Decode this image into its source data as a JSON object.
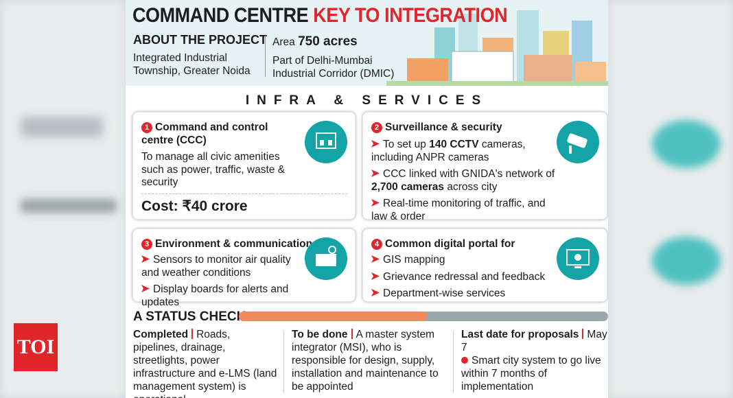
{
  "logo": "TOI",
  "header": {
    "title_black": "COMMAND CENTRE",
    "title_red": "KEY TO INTEGRATION",
    "about_label": "ABOUT THE PROJECT",
    "about_text": "Integrated Industrial Township, Greater Noida",
    "area_label": "Area",
    "area_value": "750 acres",
    "corridor": "Part of Delhi-Mumbai Industrial Corridor (DMIC)"
  },
  "section_title": "INFRA & SERVICES",
  "cards": [
    {
      "number": "1",
      "title": "Command and control centre (CCC)",
      "body": "To manage all civic amenities such as power, traffic, waste & security",
      "cost": "Cost: ₹40 crore"
    },
    {
      "number": "2",
      "title": "Surveillance & security",
      "items": [
        [
          "To set up ",
          "140 CCTV",
          " cameras, including ANPR cameras"
        ],
        [
          "CCC linked with GNIDA's network of ",
          "2,700 cameras",
          " across city"
        ],
        [
          "Real-time monitoring of traffic, and law & order"
        ]
      ]
    },
    {
      "number": "3",
      "title": "Environment & communication",
      "items": [
        [
          "Sensors to monitor air quality and weather conditions"
        ],
        [
          "Display boards for alerts and updates"
        ]
      ]
    },
    {
      "number": "4",
      "title": "Common digital portal for",
      "items": [
        [
          "GIS mapping"
        ],
        [
          "Grievance redressal and feedback"
        ],
        [
          "Department-wise services"
        ]
      ]
    }
  ],
  "status": {
    "title": "A STATUS CHECK",
    "progress_percent": 51,
    "columns": [
      {
        "label": "Completed",
        "text": "Roads, pipelines, drainage, streetlights, power infrastructure and e-LMS (land management system) is operational"
      },
      {
        "label": "To be done",
        "text": "A master system integrator (MSI), who is responsible for design, supply, installation and maintenance to be appointed"
      },
      {
        "label": "Last date for proposals",
        "text": "May 7",
        "note": "Smart city system to go live within 7 months of implementation"
      }
    ]
  }
}
